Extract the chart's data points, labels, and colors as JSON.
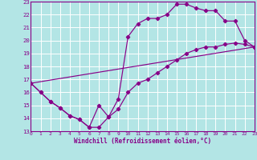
{
  "bg_color": "#b3e5e5",
  "line_color": "#880088",
  "grid_color": "#aadddd",
  "xlabel": "Windchill (Refroidissement éolien,°C)",
  "xlim": [
    0,
    23
  ],
  "ylim": [
    13,
    23
  ],
  "xticks": [
    0,
    1,
    2,
    3,
    4,
    5,
    6,
    7,
    8,
    9,
    10,
    11,
    12,
    13,
    14,
    15,
    16,
    17,
    18,
    19,
    20,
    21,
    22,
    23
  ],
  "yticks": [
    13,
    14,
    15,
    16,
    17,
    18,
    19,
    20,
    21,
    22,
    23
  ],
  "series": [
    {
      "x": [
        0,
        1,
        2,
        3,
        4,
        5,
        6,
        7,
        8,
        9,
        10,
        11,
        12,
        13,
        14,
        15,
        16,
        17,
        18,
        19,
        20,
        21,
        22,
        23
      ],
      "y": [
        16.7,
        16.0,
        15.3,
        14.8,
        14.2,
        13.9,
        13.3,
        13.3,
        14.1,
        14.7,
        16.0,
        16.7,
        17.0,
        17.5,
        18.0,
        18.5,
        19.0,
        19.3,
        19.5,
        19.5,
        19.7,
        19.8,
        19.7,
        19.5
      ]
    },
    {
      "x": [
        0,
        1,
        2,
        3,
        4,
        5,
        6,
        7,
        8,
        9,
        10,
        11,
        12,
        13,
        14,
        15,
        16,
        17,
        18,
        19,
        20,
        21,
        22,
        23
      ],
      "y": [
        16.7,
        16.0,
        15.3,
        14.8,
        14.2,
        13.9,
        13.3,
        15.0,
        14.1,
        15.5,
        20.3,
        21.3,
        21.7,
        21.7,
        22.0,
        22.8,
        22.8,
        22.5,
        22.3,
        22.3,
        21.5,
        21.5,
        20.0,
        19.5
      ]
    },
    {
      "x": [
        0,
        23
      ],
      "y": [
        16.7,
        19.5
      ]
    }
  ]
}
